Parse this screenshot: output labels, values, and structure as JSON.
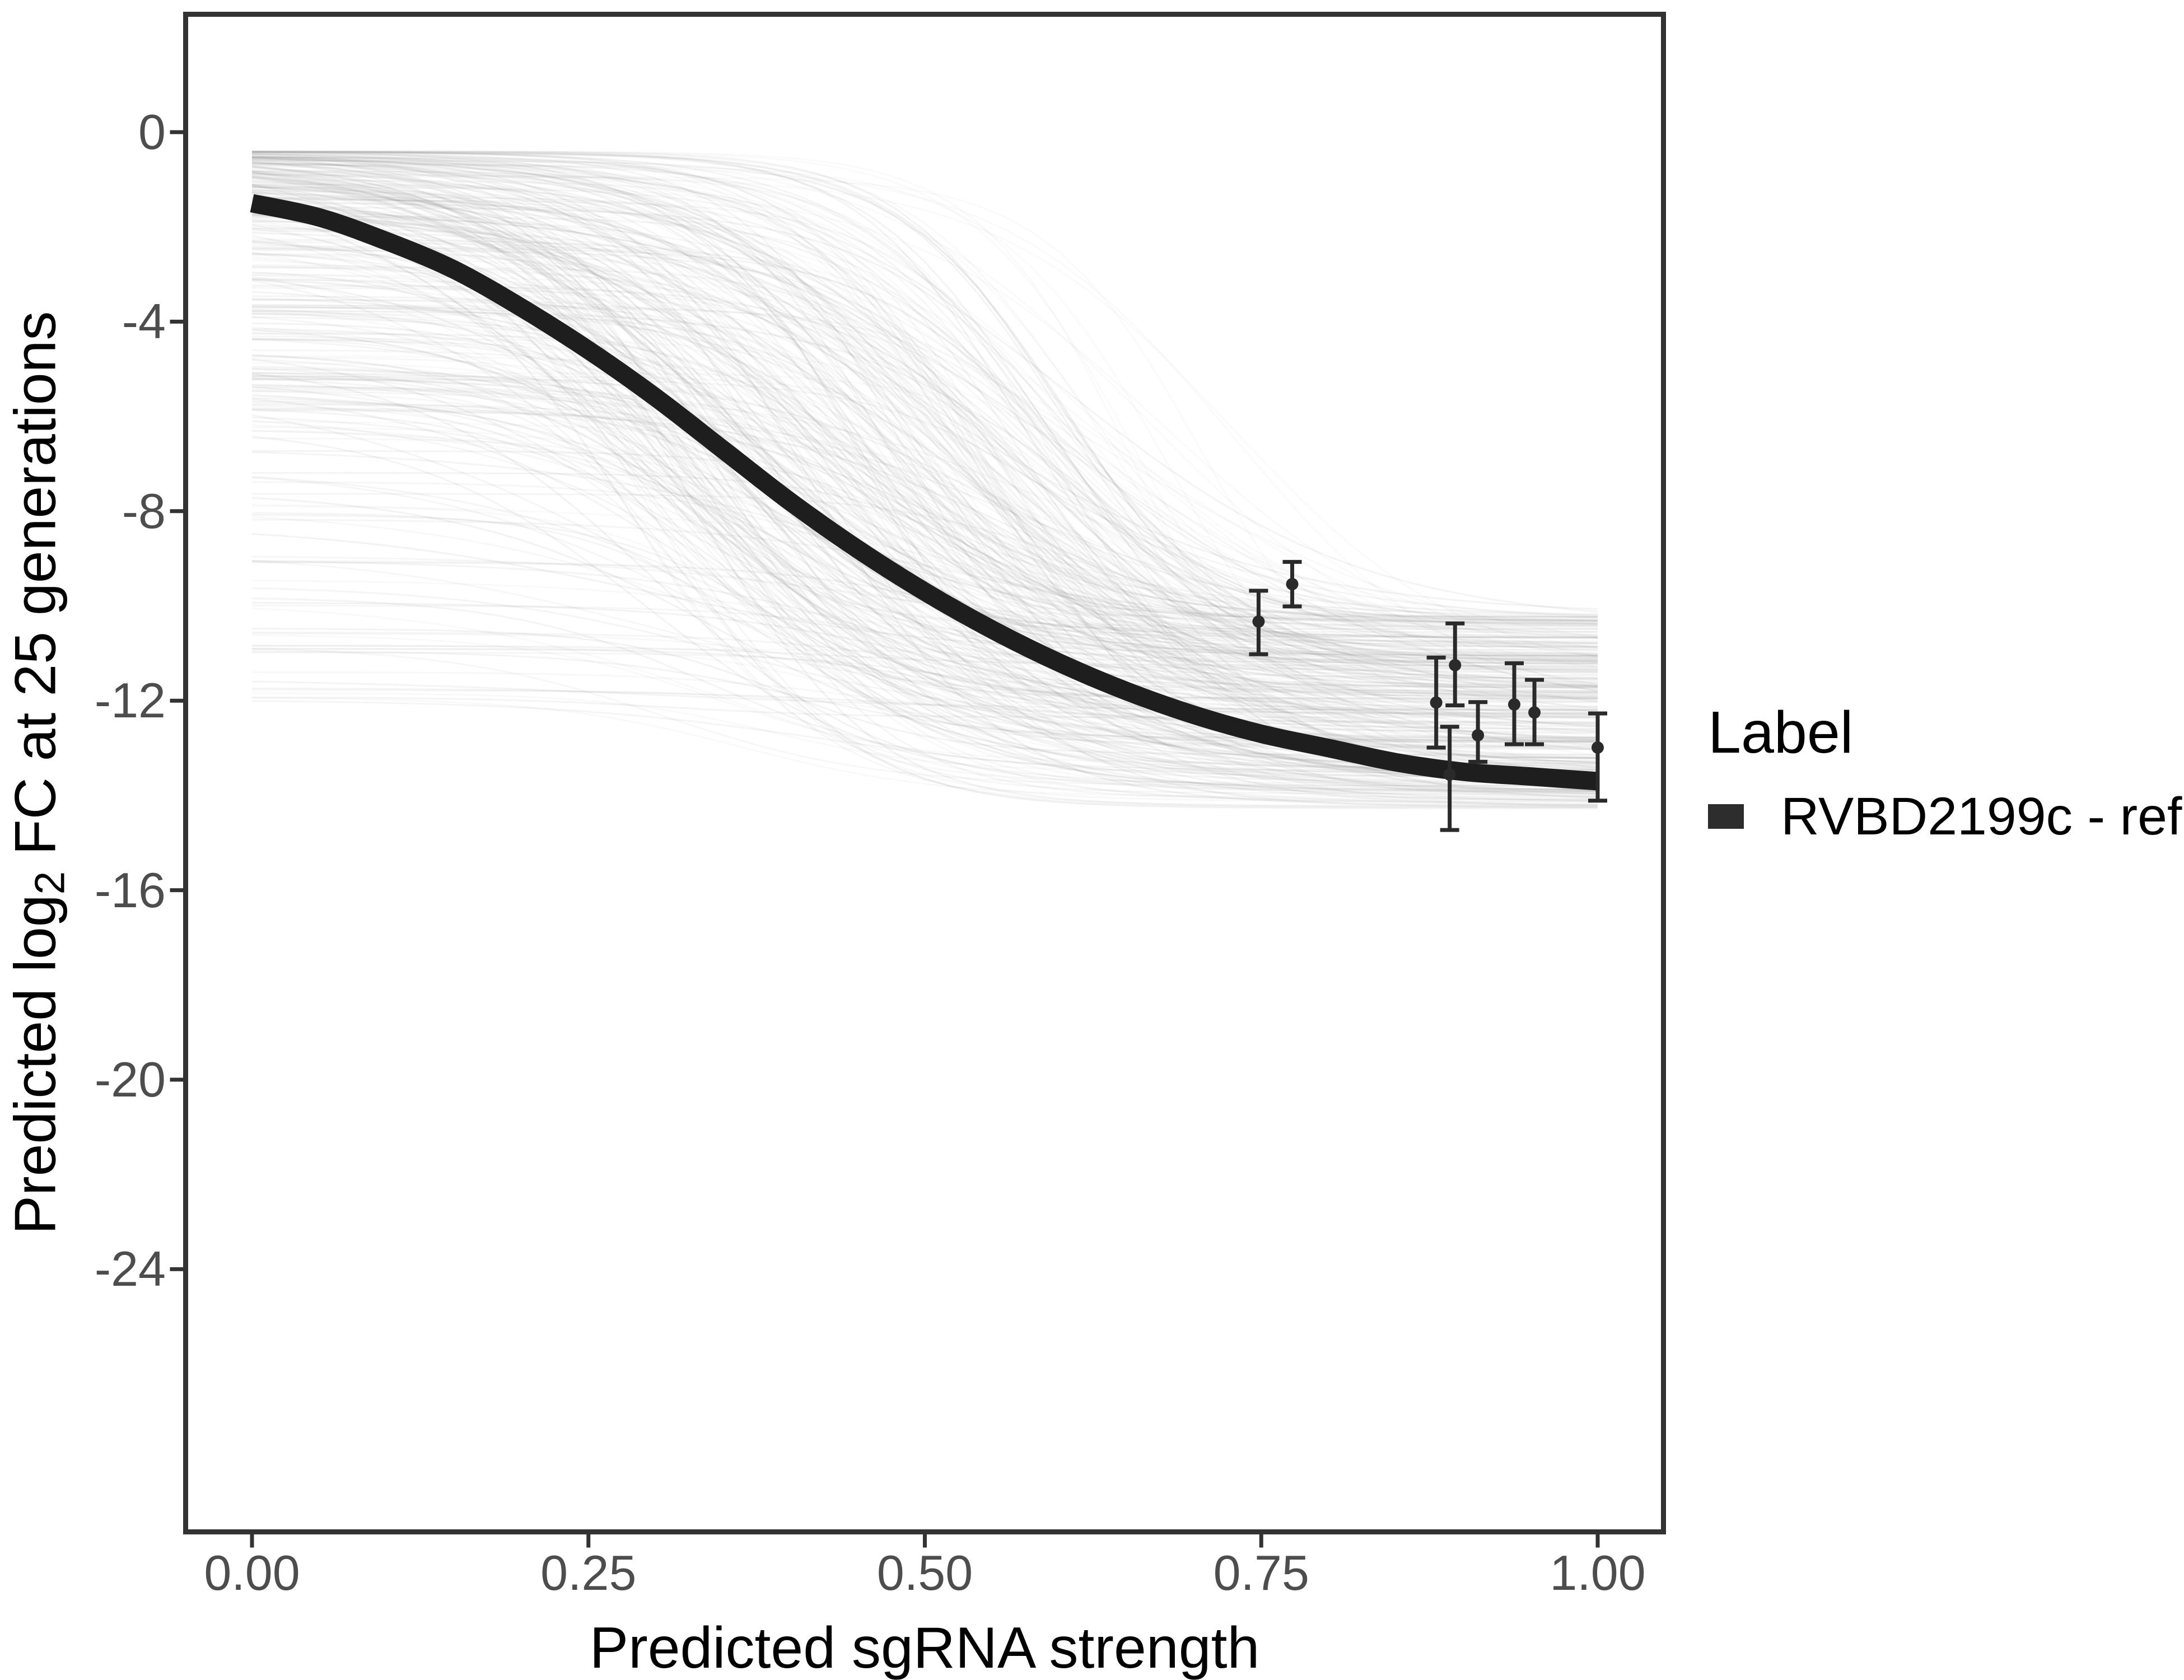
{
  "figure": {
    "background": "#ffffff"
  },
  "axes": {
    "x": {
      "title": "Predicted sgRNA strength",
      "tick_labels": [
        "0.00",
        "0.25",
        "0.50",
        "0.75",
        "1.00"
      ],
      "tick_values": [
        0,
        0.25,
        0.5,
        0.75,
        1.0
      ]
    },
    "y": {
      "title": "Predicted log2 FC at 25 generations",
      "title_parts": {
        "pre": "Predicted log",
        "sub": "2",
        "post": " FC at 25 generations"
      },
      "tick_labels": [
        "0",
        "-4",
        "-8",
        "-12",
        "-16",
        "-20",
        "-24"
      ],
      "tick_values": [
        0,
        -4,
        -8,
        -12,
        -16,
        -20,
        -24
      ]
    },
    "tick_label_color": "#4d4d4d",
    "axis_color": "#333333",
    "title_color": "#000000"
  },
  "legend": {
    "title": "Label",
    "items": [
      {
        "label": "RVBD2199c - ref",
        "key_color": "#2d2d2d"
      }
    ]
  },
  "chart_data": {
    "type": "line",
    "title": "",
    "xlabel": "Predicted sgRNA strength",
    "ylabel": "Predicted log2 FC at 25 generations",
    "xlim": [
      0,
      1
    ],
    "ylim": [
      -29.5,
      2.5
    ],
    "x_ticks": [
      0,
      0.25,
      0.5,
      0.75,
      1.0
    ],
    "y_ticks": [
      0,
      -4,
      -8,
      -12,
      -16,
      -20,
      -24
    ],
    "grid": false,
    "legend_position": "right",
    "series": [
      {
        "name": "RVBD2199c - ref",
        "role": "fitted-sigmoid-curve",
        "color": "#1e1e1e",
        "stroke_width": 33,
        "x": [
          0,
          0.05,
          0.1,
          0.15,
          0.2,
          0.25,
          0.3,
          0.35,
          0.4,
          0.45,
          0.5,
          0.55,
          0.6,
          0.65,
          0.7,
          0.75,
          0.8,
          0.85,
          0.9,
          0.95,
          1.0
        ],
        "y": [
          -1.5,
          -1.8,
          -2.3,
          -2.9,
          -3.7,
          -4.6,
          -5.6,
          -6.7,
          -7.8,
          -8.8,
          -9.7,
          -10.5,
          -11.2,
          -11.8,
          -12.3,
          -12.7,
          -13.0,
          -13.3,
          -13.5,
          -13.6,
          -13.7
        ]
      }
    ],
    "error_bar_points": {
      "name": "observed guide log2 fold changes with error bars",
      "color": "#2a2a2a",
      "points": [
        {
          "x": 0.748,
          "y": -10.33,
          "ymin": -11.02,
          "ymax": -9.68
        },
        {
          "x": 0.773,
          "y": -9.54,
          "ymin": -10.01,
          "ymax": -9.07
        },
        {
          "x": 0.88,
          "y": -12.04,
          "ymin": -12.99,
          "ymax": -11.09
        },
        {
          "x": 0.894,
          "y": -11.25,
          "ymin": -12.1,
          "ymax": -10.37
        },
        {
          "x": 0.89,
          "y": -13.56,
          "ymin": -14.73,
          "ymax": -12.55
        },
        {
          "x": 0.911,
          "y": -12.73,
          "ymin": -13.29,
          "ymax": -12.03
        },
        {
          "x": 0.938,
          "y": -12.08,
          "ymin": -12.92,
          "ymax": -11.21
        },
        {
          "x": 0.953,
          "y": -12.25,
          "ymin": -12.92,
          "ymax": -11.56
        },
        {
          "x": 1.0,
          "y": -12.99,
          "ymin": -14.11,
          "ymax": -12.27
        }
      ]
    },
    "ensemble": {
      "description": "light gray posterior-sample sigmoid curves behind the fitted curve",
      "n": 340,
      "color": "#8f8f8f",
      "seed": 20,
      "start_y_range": [
        -0.4,
        -12
      ],
      "end_y_range": [
        -10.2,
        -14.3
      ],
      "midpoint_range": [
        0.28,
        0.66
      ],
      "steepness_range": [
        7,
        18
      ]
    }
  }
}
